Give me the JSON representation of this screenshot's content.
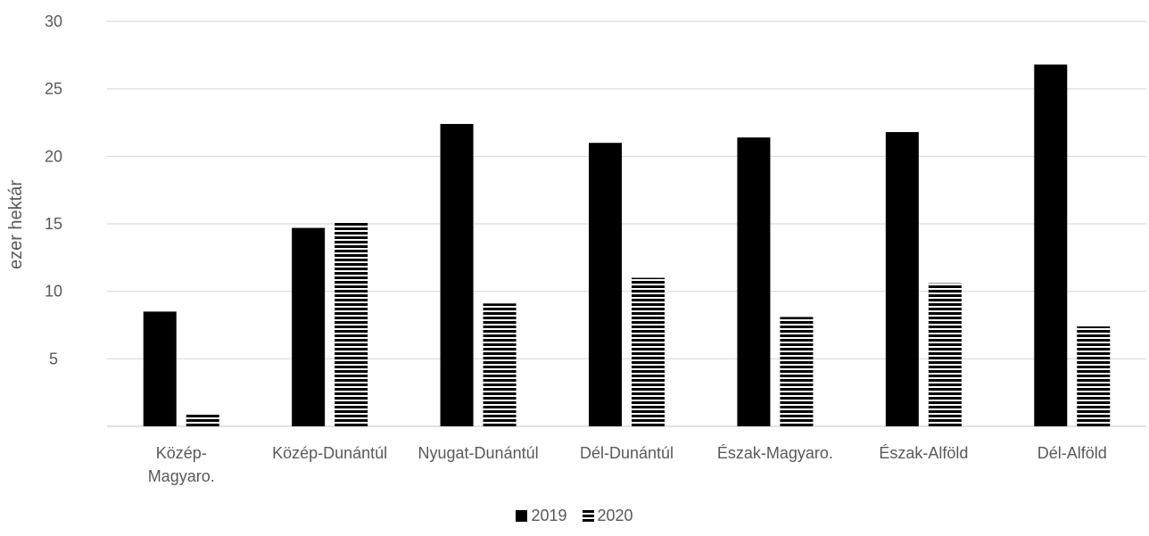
{
  "chart_data": {
    "type": "bar",
    "categories": [
      [
        "Közép-",
        "Magyaro."
      ],
      [
        "Közép-Dunántúl"
      ],
      [
        "Nyugat-Dunántúl"
      ],
      [
        "Dél-Dunántúl"
      ],
      [
        "Észak-Magyaro."
      ],
      [
        "Észak-Alföld"
      ],
      [
        "Dél-Alföld"
      ]
    ],
    "series": [
      {
        "name": "2019",
        "values": [
          8.5,
          14.7,
          22.4,
          21.0,
          21.4,
          21.8,
          26.8
        ],
        "style": "solid",
        "color": "#000000"
      },
      {
        "name": "2020",
        "values": [
          0.9,
          15.2,
          9.1,
          11.0,
          8.1,
          10.6,
          7.4
        ],
        "style": "horizontal-stripes",
        "color": "#000000"
      }
    ],
    "title": "",
    "xlabel": "",
    "ylabel": "ezer hektár",
    "ylim": [
      0,
      30
    ],
    "yticks": [
      5,
      10,
      15,
      20,
      25,
      30
    ],
    "grid": true,
    "legend_position": "bottom"
  },
  "legend": {
    "s1": "2019",
    "s2": "2020"
  }
}
